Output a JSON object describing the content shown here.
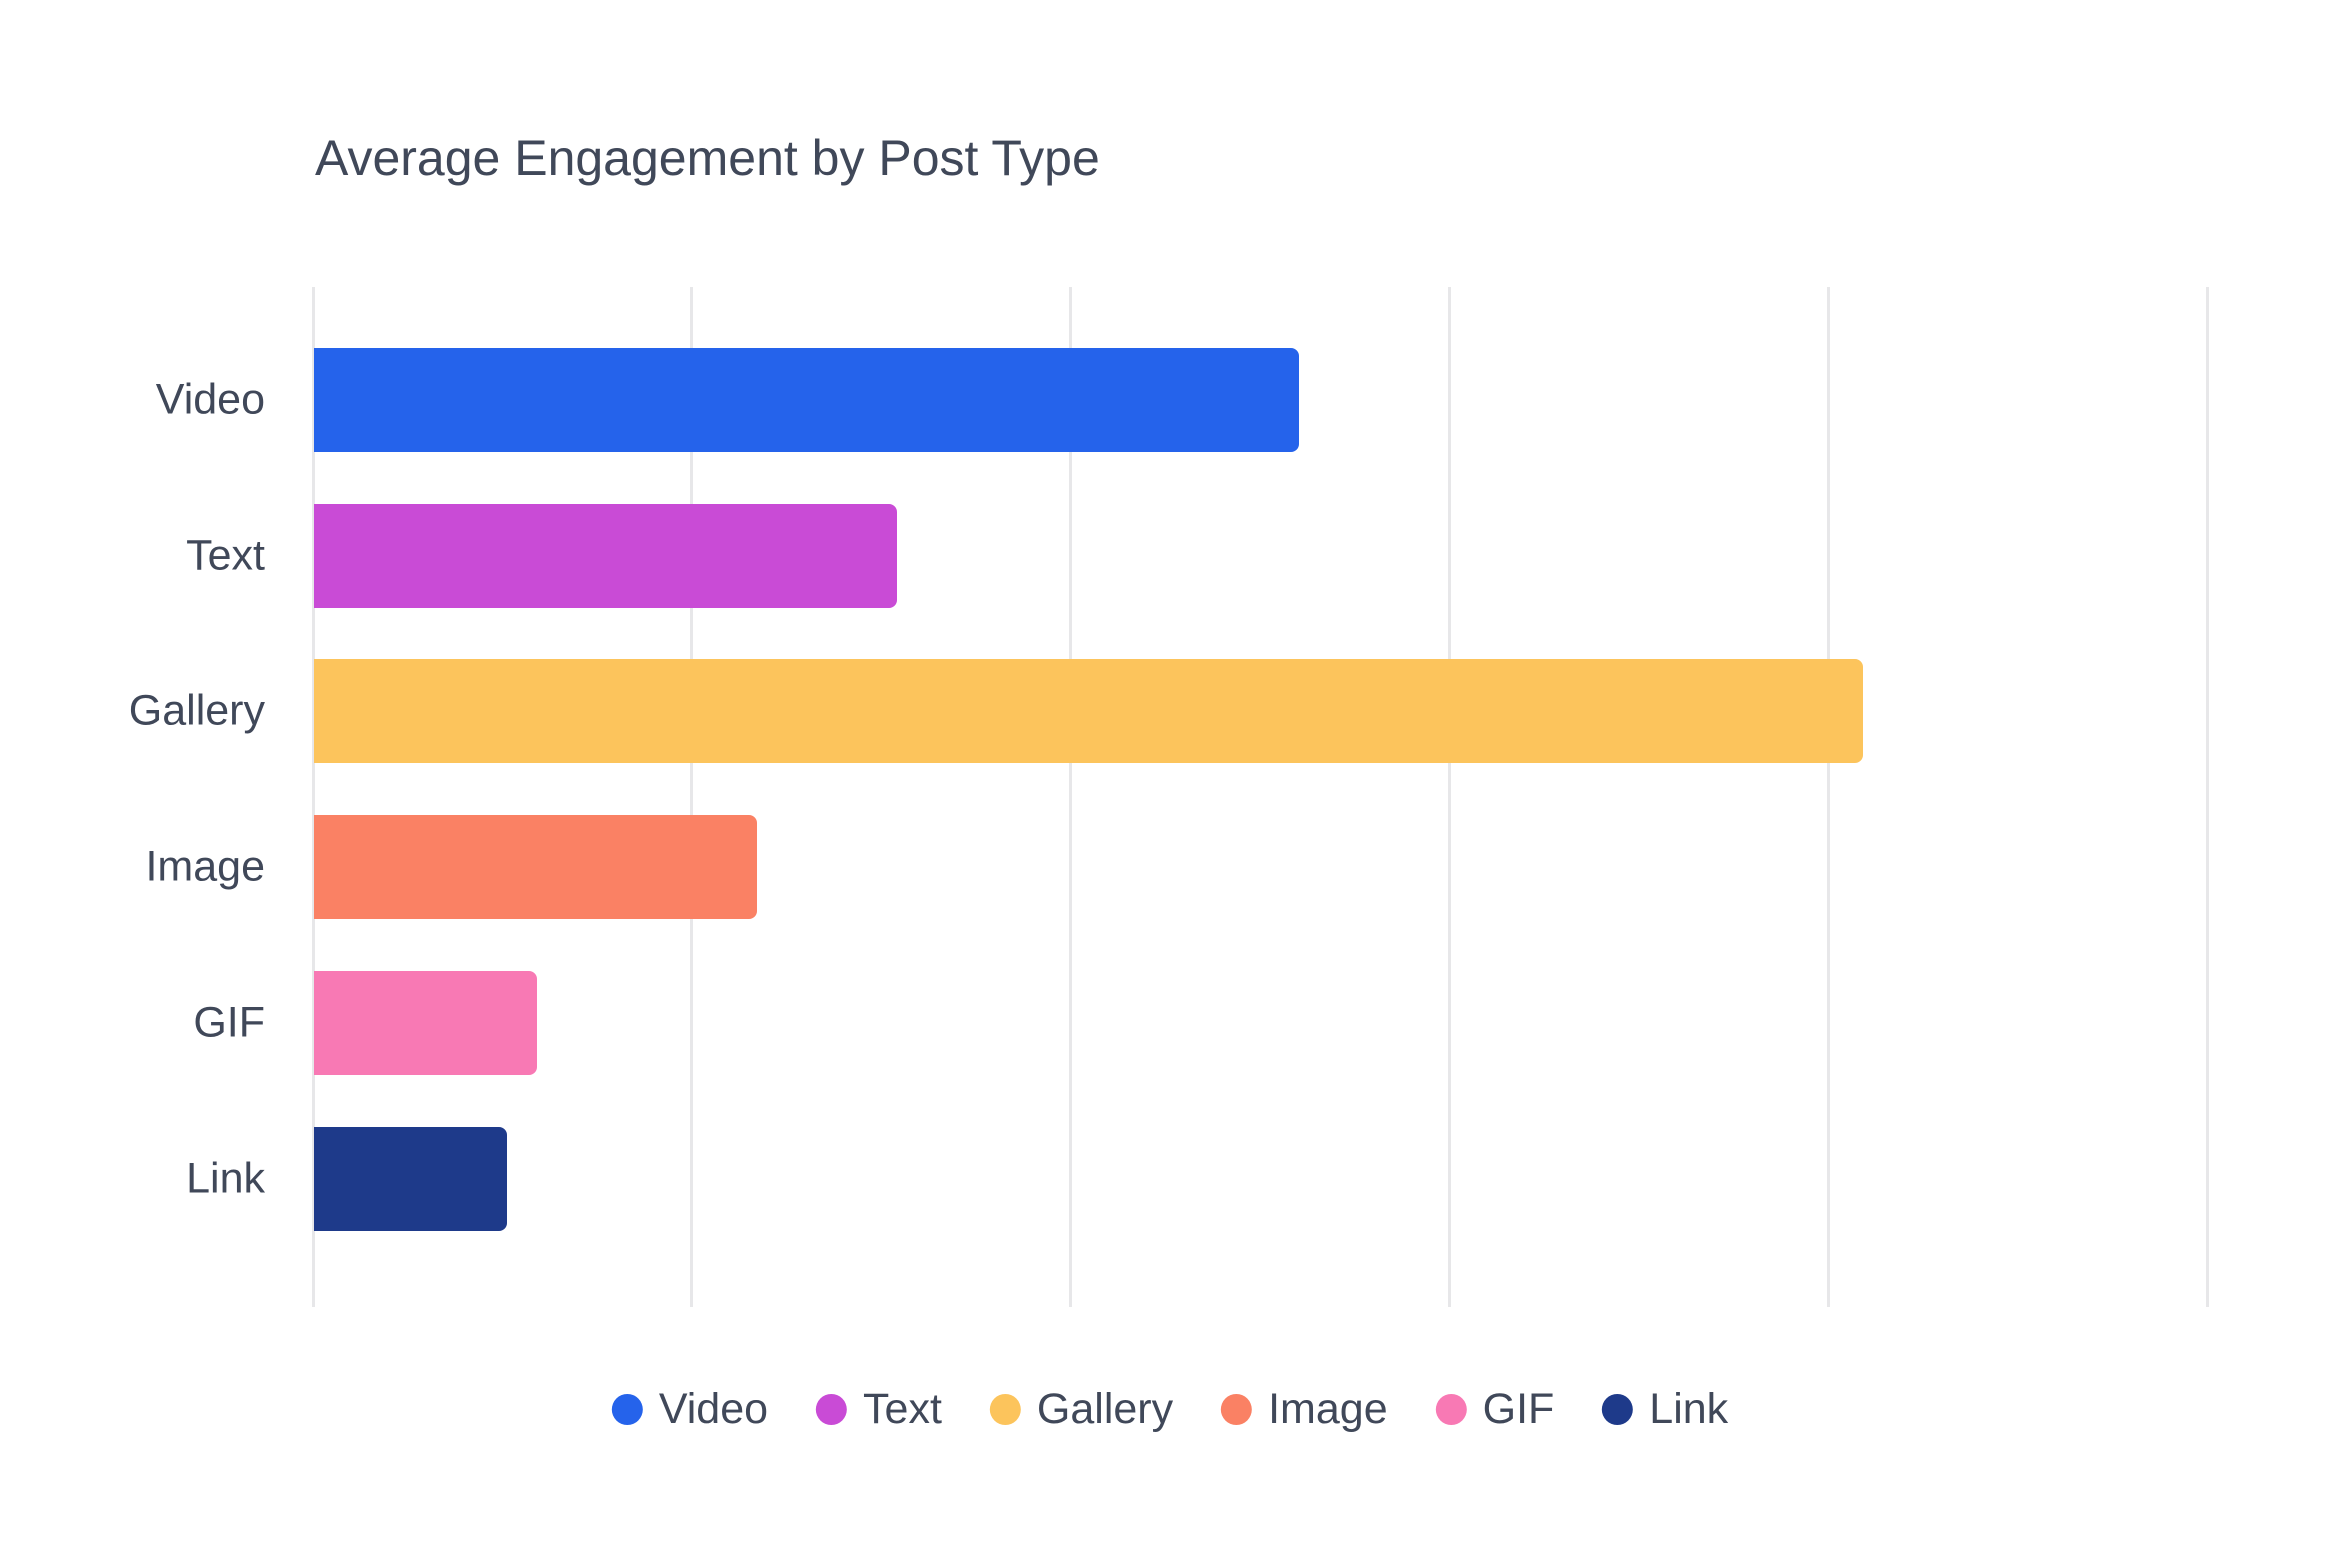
{
  "chart_data": {
    "type": "bar",
    "orientation": "horizontal",
    "title": "Average Engagement by Post Type",
    "categories": [
      "Video",
      "Text",
      "Gallery",
      "Image",
      "GIF",
      "Link"
    ],
    "values": [
      260,
      154,
      409,
      117,
      59,
      51
    ],
    "bar_colors": [
      "#2563EB",
      "#C94BD6",
      "#FCC45C",
      "#FA8164",
      "#F879B4",
      "#1E3A8A"
    ],
    "xlabel": "",
    "ylabel": "",
    "xlim": [
      0,
      530
    ],
    "xticks": [
      0,
      100,
      200,
      300,
      400,
      500
    ],
    "tick_labels_visible": false,
    "grid": "vertical",
    "gridline_color": "#E7E7E9",
    "text_color": "#404859",
    "background_color": "#FFFFFF",
    "legend": {
      "position": "bottom",
      "labels": [
        "Video",
        "Text",
        "Gallery",
        "Image",
        "GIF",
        "Link"
      ]
    }
  }
}
